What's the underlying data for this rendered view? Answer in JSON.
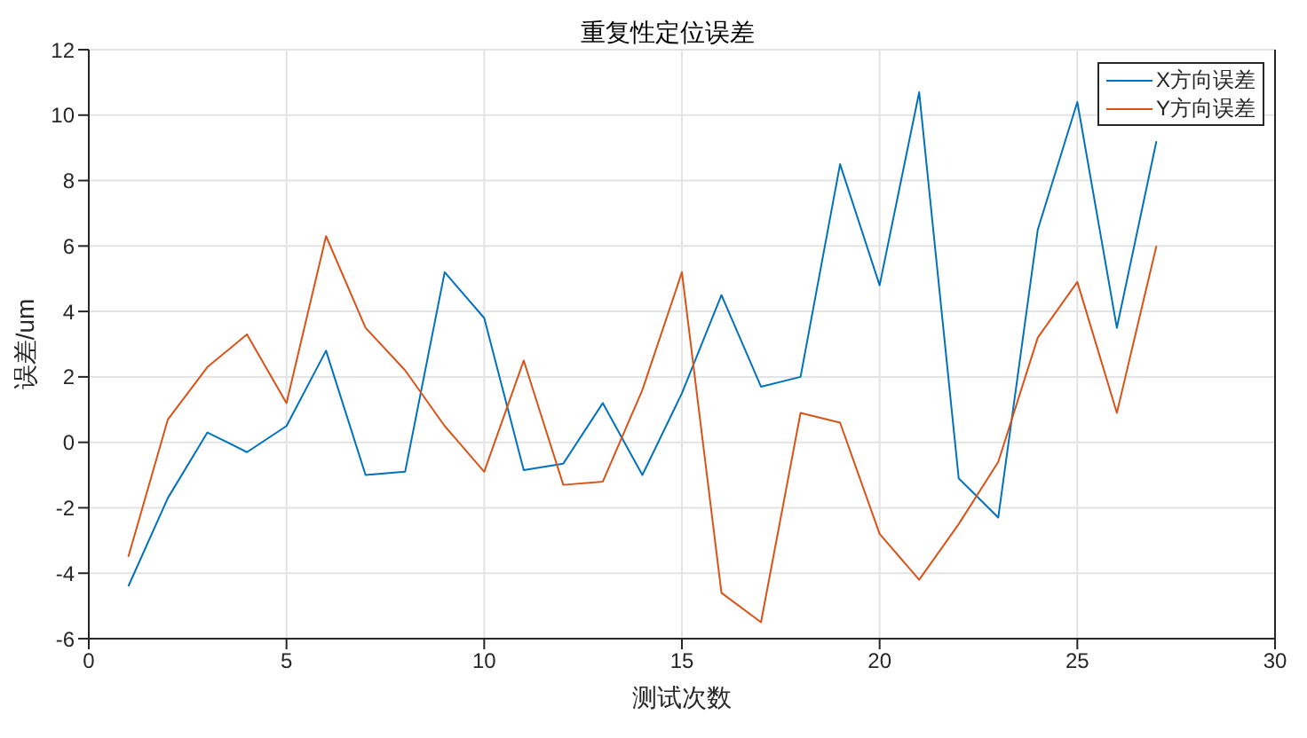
{
  "chart_data": {
    "type": "line",
    "title": "重复性定位误差",
    "xlabel": "测试次数",
    "ylabel": "误差/um",
    "x": [
      1,
      2,
      3,
      4,
      5,
      6,
      7,
      8,
      9,
      10,
      11,
      12,
      13,
      14,
      15,
      16,
      17,
      18,
      19,
      20,
      21,
      22,
      23,
      24,
      25,
      26,
      27
    ],
    "series": [
      {
        "name": "X方向误差",
        "color": "#0072bd",
        "values": [
          -4.4,
          -1.7,
          0.3,
          -0.3,
          0.5,
          2.8,
          -1.0,
          -0.9,
          5.2,
          3.8,
          -0.85,
          -0.65,
          1.2,
          -1.0,
          1.5,
          4.5,
          1.7,
          2.0,
          8.5,
          4.8,
          10.7,
          -1.1,
          -2.3,
          6.5,
          10.4,
          3.5,
          9.2
        ]
      },
      {
        "name": "Y方向误差",
        "color": "#d95319",
        "values": [
          -3.5,
          0.7,
          2.3,
          3.3,
          1.2,
          6.3,
          3.5,
          2.2,
          0.5,
          -0.9,
          2.5,
          -1.3,
          -1.2,
          1.6,
          5.2,
          -4.6,
          -5.5,
          0.9,
          0.6,
          -2.8,
          -4.2,
          -2.5,
          -0.6,
          3.2,
          4.9,
          0.9,
          6.0
        ]
      }
    ],
    "xlim": [
      0,
      30
    ],
    "xticks": [
      0,
      5,
      10,
      15,
      20,
      25,
      30
    ],
    "ylim": [
      -6,
      12
    ],
    "yticks": [
      -6,
      -4,
      -2,
      0,
      2,
      4,
      6,
      8,
      10,
      12
    ],
    "grid": true,
    "legend": "top right",
    "marker": "none",
    "line_style": "solid"
  }
}
